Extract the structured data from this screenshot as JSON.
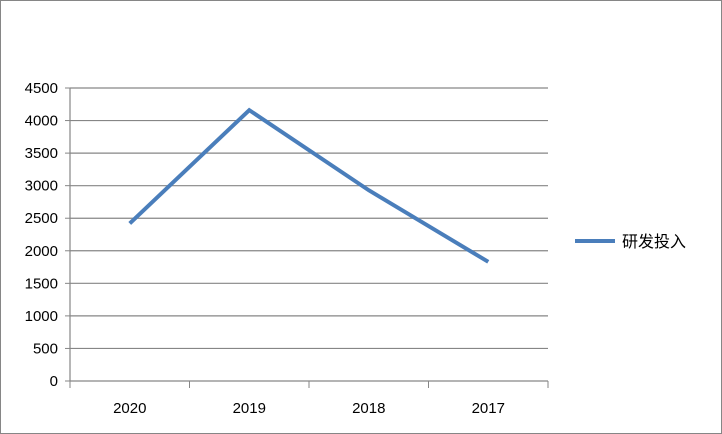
{
  "chart_data": {
    "type": "line",
    "categories": [
      "2020",
      "2019",
      "2018",
      "2017"
    ],
    "series": [
      {
        "name": "研发投入",
        "values": [
          2420,
          4160,
          2930,
          1830
        ],
        "color": "#4a7ebb"
      }
    ],
    "yticks": [
      "0",
      "500",
      "1000",
      "1500",
      "2000",
      "2500",
      "3000",
      "3500",
      "4000",
      "4500"
    ],
    "ylim": [
      0,
      4500
    ],
    "grid": true,
    "legend": "right"
  }
}
